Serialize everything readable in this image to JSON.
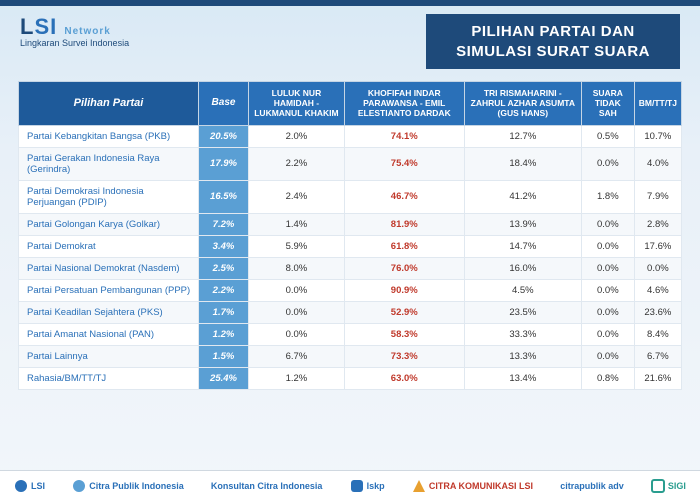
{
  "header": {
    "logo_main_l": "L",
    "logo_main_s": "S",
    "logo_main_i": "I",
    "logo_network": "Network",
    "logo_sub": "Lingkaran Survei Indonesia",
    "title_line1": "PILIHAN PARTAI DAN",
    "title_line2": "SIMULASI SURAT SUARA"
  },
  "table": {
    "type": "table",
    "header_bg": "#2a70b8",
    "header_fg": "#ffffff",
    "base_bg": "#5a9fd4",
    "highlight_color": "#c0392b",
    "partai_color": "#2a70b8",
    "columns": [
      "Pilihan Partai",
      "Base",
      "LULUK NUR HAMIDAH - LUKMANUL KHAKIM",
      "KHOFIFAH INDAR PARAWANSA - EMIL ELESTIANTO DARDAK",
      "TRI RISMAHARINI - ZAHRUL AZHAR ASUMTA (GUS HANS)",
      "SUARA TIDAK SAH",
      "BM/TT/TJ"
    ],
    "rows": [
      {
        "partai": "Partai Kebangkitan Bangsa (PKB)",
        "base": "20.5%",
        "c1": "2.0%",
        "c2": "74.1%",
        "c3": "12.7%",
        "c4": "0.5%",
        "c5": "10.7%"
      },
      {
        "partai": "Partai Gerakan Indonesia Raya (Gerindra)",
        "base": "17.9%",
        "c1": "2.2%",
        "c2": "75.4%",
        "c3": "18.4%",
        "c4": "0.0%",
        "c5": "4.0%"
      },
      {
        "partai": "Partai Demokrasi Indonesia Perjuangan (PDIP)",
        "base": "16.5%",
        "c1": "2.4%",
        "c2": "46.7%",
        "c3": "41.2%",
        "c4": "1.8%",
        "c5": "7.9%"
      },
      {
        "partai": "Partai Golongan Karya (Golkar)",
        "base": "7.2%",
        "c1": "1.4%",
        "c2": "81.9%",
        "c3": "13.9%",
        "c4": "0.0%",
        "c5": "2.8%"
      },
      {
        "partai": "Partai Demokrat",
        "base": "3.4%",
        "c1": "5.9%",
        "c2": "61.8%",
        "c3": "14.7%",
        "c4": "0.0%",
        "c5": "17.6%"
      },
      {
        "partai": "Partai Nasional Demokrat (Nasdem)",
        "base": "2.5%",
        "c1": "8.0%",
        "c2": "76.0%",
        "c3": "16.0%",
        "c4": "0.0%",
        "c5": "0.0%"
      },
      {
        "partai": "Partai Persatuan Pembangunan (PPP)",
        "base": "2.2%",
        "c1": "0.0%",
        "c2": "90.9%",
        "c3": "4.5%",
        "c4": "0.0%",
        "c5": "4.6%"
      },
      {
        "partai": "Partai Keadilan Sejahtera (PKS)",
        "base": "1.7%",
        "c1": "0.0%",
        "c2": "52.9%",
        "c3": "23.5%",
        "c4": "0.0%",
        "c5": "23.6%"
      },
      {
        "partai": "Partai Amanat Nasional (PAN)",
        "base": "1.2%",
        "c1": "0.0%",
        "c2": "58.3%",
        "c3": "33.3%",
        "c4": "0.0%",
        "c5": "8.4%"
      },
      {
        "partai": "Partai Lainnya",
        "base": "1.5%",
        "c1": "6.7%",
        "c2": "73.3%",
        "c3": "13.3%",
        "c4": "0.0%",
        "c5": "6.7%"
      },
      {
        "partai": "Rahasia/BM/TT/TJ",
        "base": "25.4%",
        "c1": "1.2%",
        "c2": "63.0%",
        "c3": "13.4%",
        "c4": "0.8%",
        "c5": "21.6%"
      }
    ]
  },
  "footer": {
    "logos": [
      "LSI",
      "Citra Publik Indonesia",
      "Konsultan Citra Indonesia",
      "lskp",
      "CITRA KOMUNIKASI LSI",
      "citrapublik adv",
      "SIGI"
    ]
  }
}
